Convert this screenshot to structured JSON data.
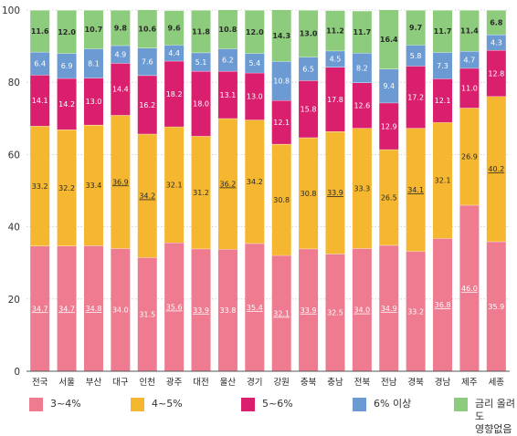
{
  "chart_data": {
    "type": "bar",
    "stacked": true,
    "categories": [
      "전국",
      "서울",
      "부산",
      "대구",
      "인천",
      "광주",
      "대전",
      "울산",
      "경기",
      "강원",
      "충북",
      "충남",
      "전북",
      "전남",
      "경북",
      "경남",
      "제주",
      "세종"
    ],
    "yticks": [
      "0",
      "20",
      "40",
      "60",
      "80",
      "100"
    ],
    "ylim": [
      0,
      100
    ],
    "grid": true,
    "legend_position": "bottom",
    "series": [
      {
        "name": "3~4%",
        "color": "#ee7b8f",
        "values": [
          34.7,
          34.7,
          34.8,
          34.0,
          31.5,
          35.6,
          33.9,
          33.8,
          35.4,
          32.1,
          33.9,
          32.5,
          34.0,
          34.9,
          33.2,
          36.8,
          46.0,
          35.9
        ],
        "labels": [
          "34.7",
          "34.7",
          "34.8",
          "34.0",
          "31.5",
          "35.6",
          "33.9",
          "33.8",
          "35.4",
          "32.1",
          "33.9",
          "32.5",
          "34.0",
          "34.9",
          "33.2",
          "36.8",
          "46.0",
          "35.9"
        ],
        "underlined": [
          true,
          true,
          true,
          false,
          false,
          true,
          true,
          false,
          true,
          true,
          true,
          false,
          true,
          true,
          false,
          true,
          true,
          false
        ]
      },
      {
        "name": "4~5%",
        "color": "#f5b72f",
        "values": [
          33.2,
          32.2,
          33.4,
          36.9,
          34.2,
          32.1,
          31.2,
          36.2,
          34.2,
          30.8,
          30.8,
          33.9,
          33.3,
          26.5,
          34.1,
          32.1,
          26.9,
          40.2
        ],
        "labels": [
          "33.2",
          "32.2",
          "33.4",
          "36.9",
          "34.2",
          "32.1",
          "31.2",
          "36.2",
          "34.2",
          "30.8",
          "30.8",
          "33.9",
          "33.3",
          "26.5",
          "34.1",
          "32.1",
          "26.9",
          "40.2"
        ],
        "underlined": [
          false,
          false,
          false,
          true,
          true,
          false,
          false,
          true,
          false,
          false,
          false,
          true,
          false,
          false,
          true,
          false,
          false,
          true
        ]
      },
      {
        "name": "5~6%",
        "color": "#da1f6e",
        "values": [
          14.1,
          14.2,
          13.0,
          14.4,
          16.2,
          18.2,
          18.0,
          13.1,
          13.0,
          12.1,
          15.8,
          17.8,
          12.6,
          12.9,
          17.2,
          12.1,
          11.0,
          12.8
        ],
        "labels": [
          "14.1",
          "14.2",
          "13.0",
          "14.4",
          "16.2",
          "18.2",
          "18.0",
          "13.1",
          "13.0",
          "12.1",
          "15.8",
          "17.8",
          "12.6",
          "12.9",
          "17.2",
          "12.1",
          "11.0",
          "12.8"
        ],
        "underlined": [
          false,
          false,
          false,
          false,
          false,
          false,
          false,
          false,
          false,
          false,
          false,
          false,
          false,
          false,
          false,
          false,
          false,
          false
        ]
      },
      {
        "name": "6% 이상",
        "color": "#6b9bd2",
        "values": [
          6.4,
          6.9,
          8.1,
          4.9,
          7.6,
          4.4,
          5.1,
          6.2,
          5.4,
          10.8,
          6.5,
          4.5,
          8.2,
          9.4,
          5.8,
          7.3,
          4.7,
          4.3
        ],
        "labels": [
          "6.4",
          "6.9",
          "8.1",
          "4.9",
          "7.6",
          "4.4",
          "5.1",
          "6.2",
          "5.4",
          "10.8",
          "6.5",
          "4.5",
          "8.2",
          "9.4",
          "5.8",
          "7.3",
          "4.7",
          "4.3"
        ],
        "underlined": [
          false,
          false,
          false,
          false,
          false,
          false,
          false,
          false,
          false,
          false,
          false,
          false,
          false,
          false,
          false,
          false,
          false,
          false
        ]
      },
      {
        "name": "금리 올려도\n영향없음",
        "color": "#8dcc7c",
        "values": [
          11.6,
          12.0,
          10.7,
          9.8,
          10.6,
          9.6,
          11.8,
          10.8,
          12.0,
          14.3,
          13.0,
          11.2,
          11.7,
          16.4,
          9.7,
          11.7,
          11.4,
          6.8
        ],
        "labels": [
          "11.6",
          "12.0",
          "10.7",
          "9.8",
          "10.6",
          "9.6",
          "11.8",
          "10.8",
          "12.0",
          "14.3",
          "13.0",
          "11.2",
          "11.7",
          "16.4",
          "9.7",
          "11.7",
          "11.4",
          "6.8"
        ],
        "underlined": [
          false,
          false,
          false,
          false,
          false,
          false,
          false,
          false,
          false,
          false,
          false,
          false,
          false,
          false,
          false,
          false,
          false,
          false
        ]
      }
    ]
  }
}
